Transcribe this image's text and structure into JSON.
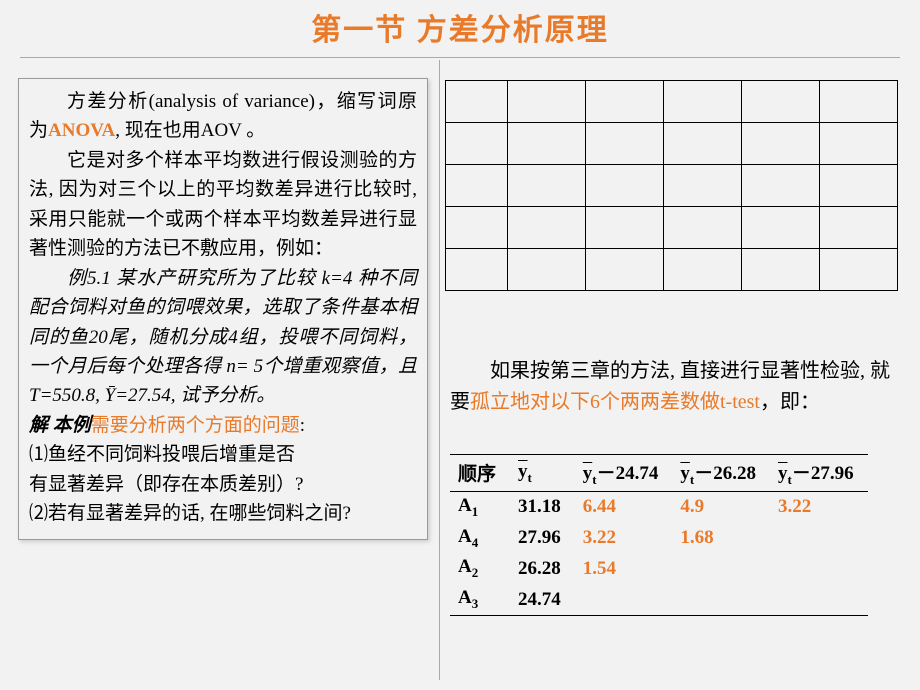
{
  "title": "第一节  方差分析原理",
  "left": {
    "p1a": "方差分析(analysis of variance)，缩写词原为",
    "p1b": "ANOVA",
    "p1c": ",  现在也用AOV 。",
    "p2": "它是对多个样本平均数进行假设测验的方法,  因为对三个以上的平均数差异进行比较时,  采用只能就一个或两个样本平均数差异进行显著性测验的方法已不敷应用，例如：",
    "p3": "例5.1  某水产研究所为了比较 k=4 种不同配合饲料对鱼的饲喂效果，选取了条件基本相同的鱼20尾，随机分成4组，投喂不同饲料，一个月后每个处理各得 n= 5个增重观察值，且T=550.8,  Ȳ=27.54, 试予分析。",
    "p4a": "解   本例",
    "p4b": "需要分析两个方面的问题",
    "p4c": ":",
    "p5": "⑴鱼经不同饲料投喂后增重是否",
    "p6": "     有显著差异（即存在本质差别）?",
    "p7": "⑵若有显著差异的话,  在哪些饲料之间?"
  },
  "right": {
    "p1a": "如果按第三章的方法, 直接进行显著性检验,  就要",
    "p1b": "孤立地对以下6个两两差数做t-test",
    "p1c": "，即：",
    "headers": [
      "顺序",
      "ȳt",
      "ȳt－24.74",
      "ȳt－26.28",
      "ȳt－27.96"
    ],
    "rows": [
      {
        "label": "A",
        "sub": "1",
        "yt": "31.18",
        "d1": "6.44",
        "d2": "4.9",
        "d3": "3.22"
      },
      {
        "label": "A",
        "sub": "4",
        "yt": "27.96",
        "d1": "3.22",
        "d2": "1.68",
        "d3": ""
      },
      {
        "label": "A",
        "sub": "2",
        "yt": "26.28",
        "d1": "1.54",
        "d2": "",
        "d3": ""
      },
      {
        "label": "A",
        "sub": "3",
        "yt": "24.74",
        "d1": "",
        "d2": "",
        "d3": ""
      }
    ]
  },
  "grid": {
    "rows": 5,
    "cols": 6
  },
  "colors": {
    "accent": "#e87a2a",
    "bg": "#f2f2f2",
    "border": "#000"
  }
}
